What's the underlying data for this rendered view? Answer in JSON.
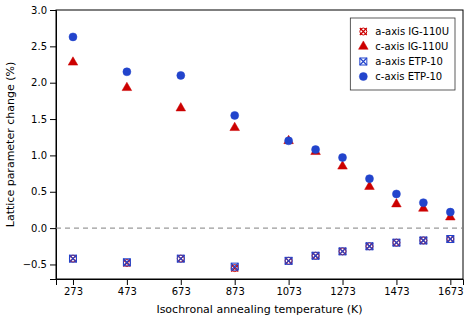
{
  "chart_data": {
    "type": "scatter",
    "x_label": "Isochronal annealing temperature (K)",
    "y_label": "Lattice parameter change (%)",
    "x": [
      273,
      473,
      673,
      873,
      1073,
      1173,
      1273,
      1373,
      1473,
      1573,
      1673
    ],
    "series": [
      {
        "name": "a-axis IG-110U",
        "color": "#cc0000",
        "marker": "circle-x",
        "values": [
          -0.42,
          -0.48,
          -0.42,
          -0.55,
          -0.45,
          -0.38,
          -0.32,
          -0.25,
          -0.2,
          -0.17,
          -0.15
        ]
      },
      {
        "name": "c-axis IG-110U",
        "color": "#cc0000",
        "marker": "triangle",
        "values": [
          2.28,
          1.93,
          1.65,
          1.38,
          1.2,
          1.05,
          0.85,
          0.57,
          0.33,
          0.27,
          0.15
        ]
      },
      {
        "name": "a-axis ETP-10",
        "color": "#2244cc",
        "marker": "square-x",
        "values": [
          -0.42,
          -0.47,
          -0.42,
          -0.53,
          -0.45,
          -0.38,
          -0.32,
          -0.25,
          -0.2,
          -0.17,
          -0.15
        ]
      },
      {
        "name": "c-axis ETP-10",
        "color": "#2244cc",
        "marker": "circle",
        "values": [
          2.63,
          2.15,
          2.1,
          1.55,
          1.2,
          1.08,
          0.97,
          0.68,
          0.47,
          0.35,
          0.22
        ]
      }
    ],
    "hline": 0,
    "xlim": [
      210,
      1720
    ],
    "ylim": [
      -0.7,
      3.0
    ],
    "xticks": [
      273,
      473,
      673,
      873,
      1073,
      1273,
      1473,
      1673
    ],
    "yticks": [
      {
        "value": -0.5,
        "label": "−0.5"
      },
      {
        "value": 0.0,
        "label": "0.0"
      },
      0.5,
      {
        "value": 1.0,
        "label": "1.0"
      },
      1.5,
      {
        "value": 2.0,
        "label": "2.0"
      },
      2.5,
      {
        "value": 3.0,
        "label": "3.0"
      }
    ],
    "legend": "upper right"
  }
}
